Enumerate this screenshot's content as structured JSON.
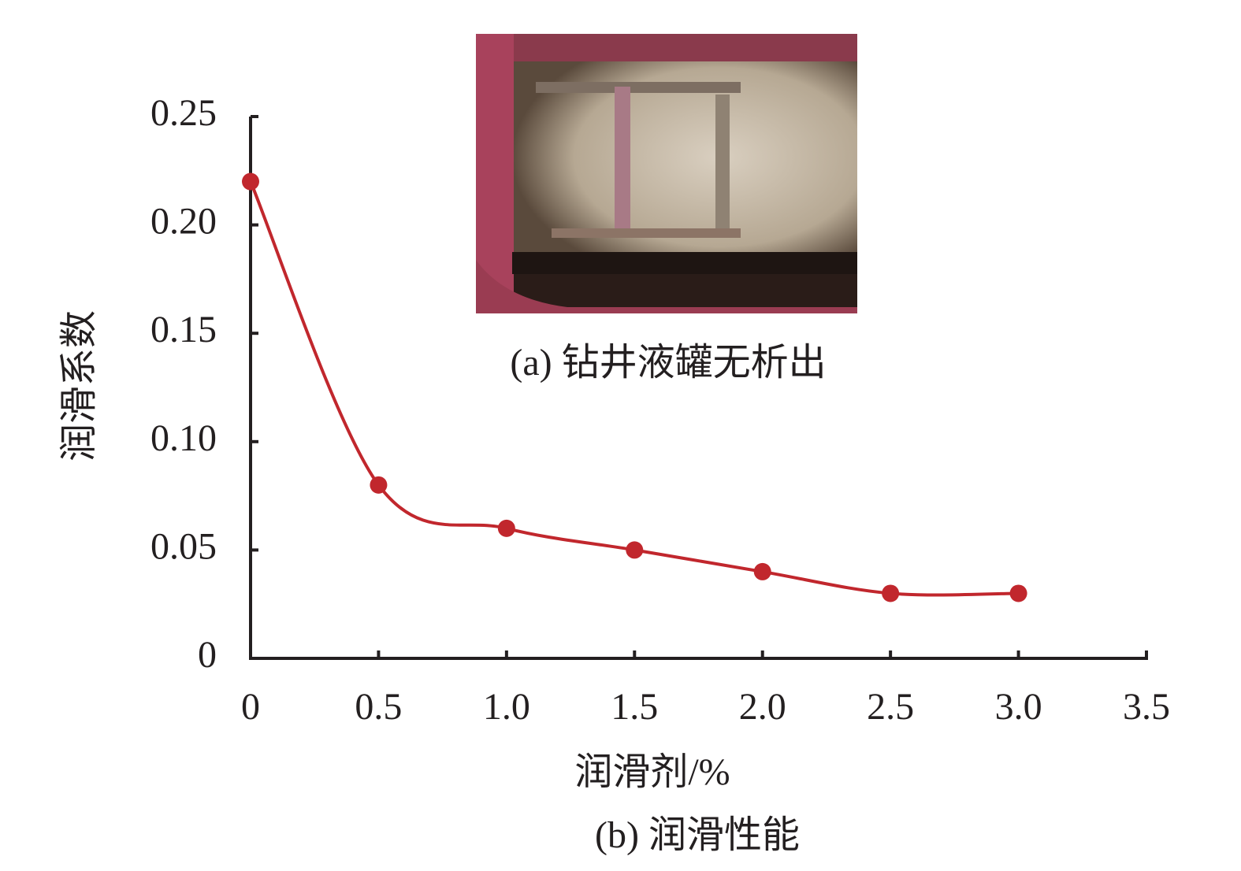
{
  "chart_data": {
    "type": "line",
    "photo_caption": "(a) 钻井液罐无析出",
    "caption": "(b) 润滑性能",
    "xlabel": "润滑剂/%",
    "ylabel": "润滑系数",
    "x": [
      0,
      0.5,
      1,
      1.5,
      2,
      2.5,
      3
    ],
    "series": [
      {
        "color": "#c1272d",
        "values": [
          0.22,
          0.08,
          0.06,
          0.05,
          0.04,
          0.03,
          0.03
        ]
      }
    ],
    "xlim": [
      0,
      3.5
    ],
    "xticks": [
      0,
      0.5,
      {
        "value": 1,
        "label": "1.0"
      },
      1.5,
      {
        "value": 2,
        "label": "2.0"
      },
      2.5,
      {
        "value": 3,
        "label": "3.0"
      },
      3.5
    ],
    "ylim": [
      0,
      0.25
    ],
    "yticks": [
      0,
      0.05,
      {
        "value": 0.1,
        "label": "0.10"
      },
      0.15,
      {
        "value": 0.2,
        "label": "0.20"
      },
      0.25
    ],
    "smooth": true
  }
}
